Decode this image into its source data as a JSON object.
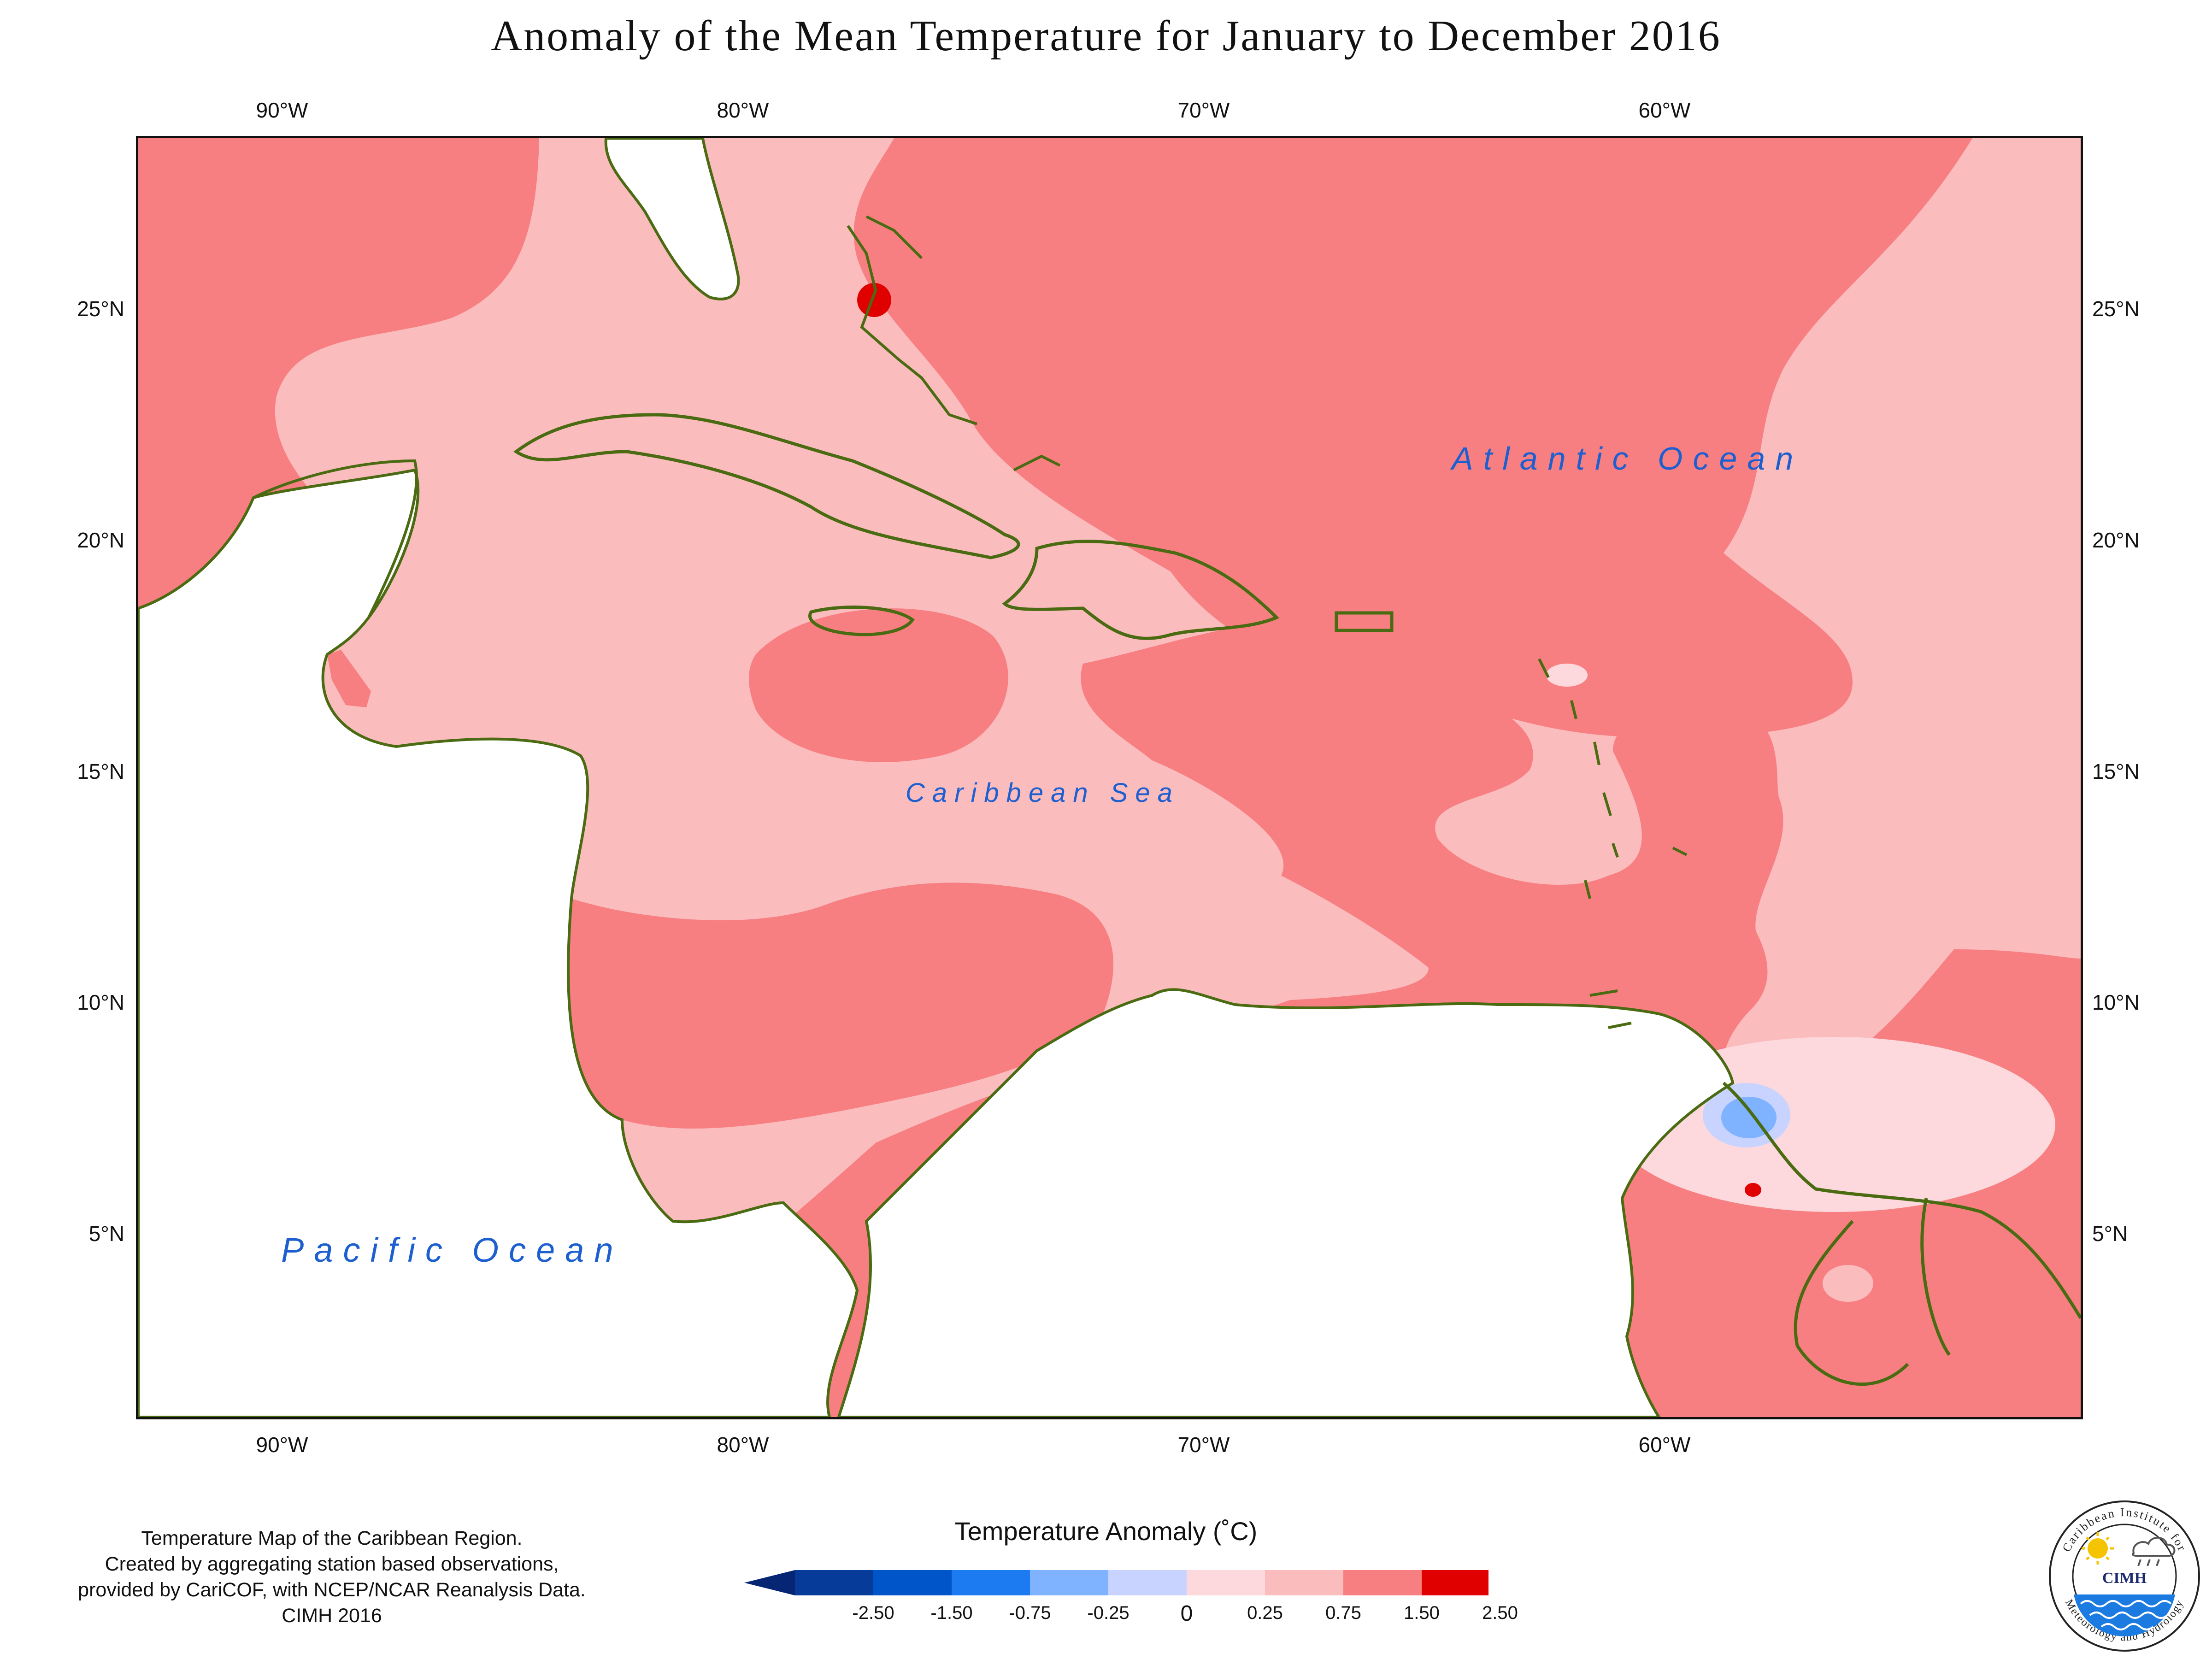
{
  "title": "Anomaly of the Mean Temperature for January to December 2016",
  "longitude_ticks": [
    "90°W",
    "80°W",
    "70°W",
    "60°W"
  ],
  "latitude_ticks": [
    "25°N",
    "20°N",
    "15°N",
    "10°N",
    "5°N"
  ],
  "ocean_labels": {
    "atlantic": "Atlantic Ocean",
    "caribbean": "Caribbean Sea",
    "pacific": "Pacific Ocean"
  },
  "colors": {
    "coastline": "#4a6b12",
    "anomaly_0_25": "#fdd8dc",
    "anomaly_0_25_0_75": "#fbbcbe",
    "anomaly_0_75_1_50": "#f77f81",
    "anomaly_1_50_2_50": "#e00000",
    "anomaly_neg_0_25_0": "#c8d4ff",
    "anomaly_neg_0_75_0_25": "#7fb2ff",
    "ocean_label": "#1e5fd0"
  },
  "legend": {
    "title": "Temperature Anomaly (˚C)",
    "labels": [
      "-2.50",
      "-1.50",
      "-0.75",
      "-0.25",
      "0",
      "0.25",
      "0.75",
      "1.50",
      "2.50"
    ],
    "bin_colors": [
      "#073b9a",
      "#0055c8",
      "#1c7bf0",
      "#7fb2ff",
      "#c8d4ff",
      "#fdd8dc",
      "#fbbcbe",
      "#f77f81",
      "#e00000"
    ],
    "low_arrow_color": "#062673",
    "high_arrow_color": "#a80000"
  },
  "credit": {
    "line1": "Temperature Map of the Caribbean Region.",
    "line2": "Created by aggregating station based observations,",
    "line3": "provided by CariCOF, with NCEP/NCAR Reanalysis Data.",
    "line4": "CIMH 2016"
  },
  "logo": {
    "name": "CIMH",
    "ring_text_top": "Caribbean Institute for",
    "ring_text_bottom": "Meteorology and Hydrology"
  }
}
